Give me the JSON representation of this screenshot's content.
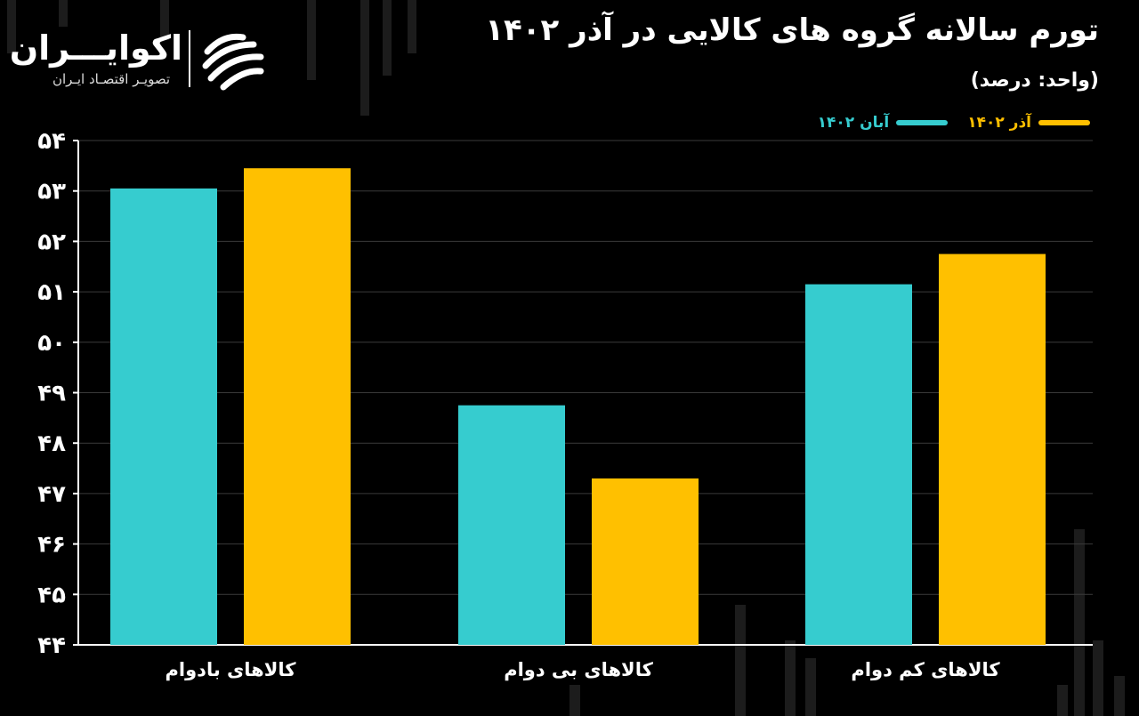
{
  "header": {
    "title": "تورم سالانه گروه های کالایی در آذر ۱۴۰۲",
    "subtitle": "(واحد: درصد)"
  },
  "brand": {
    "name": "اکوایـــران",
    "tagline": "تصویـر اقتصـاد ایـران"
  },
  "colors": {
    "background": "#000000",
    "series_aban": "#36cccf",
    "series_azar": "#ffc000",
    "grid": "#3a3a3a",
    "text": "#ffffff"
  },
  "chart_data": {
    "type": "bar",
    "categories": [
      "کالاهای بادوام",
      "کالاهای بی دوام",
      "کالاهای کم دوام"
    ],
    "series": [
      {
        "name": "آبان ۱۴۰۲",
        "values": [
          53.05,
          48.75,
          51.15
        ]
      },
      {
        "name": "آذر ۱۴۰۲",
        "values": [
          53.45,
          47.3,
          51.75
        ]
      }
    ],
    "ylim": [
      44,
      54
    ],
    "yticks": [
      "۴۴",
      "۴۵",
      "۴۶",
      "۴۷",
      "۴۸",
      "۴۹",
      "۵۰",
      "۵۱",
      "۵۲",
      "۵۳",
      "۵۴"
    ],
    "grid": true,
    "legend_position": "top-right"
  }
}
